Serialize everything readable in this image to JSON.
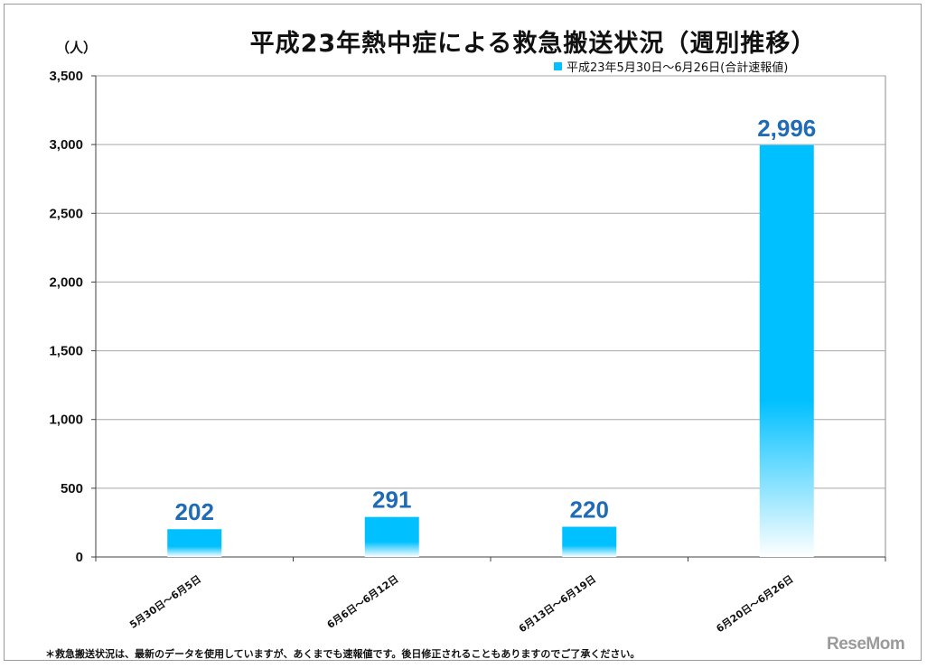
{
  "page": {
    "title": "平成23年熱中症による救急搬送状況（週別推移）",
    "unit_label": "（人）",
    "footnote": "＊救急搬送状況は、最新のデータを使用していますが、あくまでも速報値です。後日修正されることもありますのでご了承ください。",
    "logo_text": "ReseMom"
  },
  "chart_data": {
    "type": "bar",
    "title": "平成23年熱中症による救急搬送状況（週別推移）",
    "xlabel": "",
    "ylabel": "（人）",
    "categories": [
      "5月30日～6月5日",
      "6月6日～6月12日",
      "6月13日～6月19日",
      "6月20日～6月26日"
    ],
    "series": [
      {
        "name": "平成23年5月30日～6月26日(合計速報値)",
        "values": [
          202,
          291,
          220,
          2996
        ],
        "data_labels": [
          "202",
          "291",
          "220",
          "2,996"
        ]
      }
    ],
    "ylim": [
      0,
      3500
    ],
    "yticks": [
      0,
      500,
      1000,
      1500,
      2000,
      2500,
      3000,
      3500
    ],
    "ytick_labels": [
      "0",
      "500",
      "1,000",
      "1,500",
      "2,000",
      "2,500",
      "3,000",
      "3,500"
    ],
    "grid": true,
    "legend_position": "top-right",
    "colors": {
      "bar": "#00c0ff",
      "data_label": "#1f6bb5",
      "grid": "#a6a6a6"
    }
  }
}
